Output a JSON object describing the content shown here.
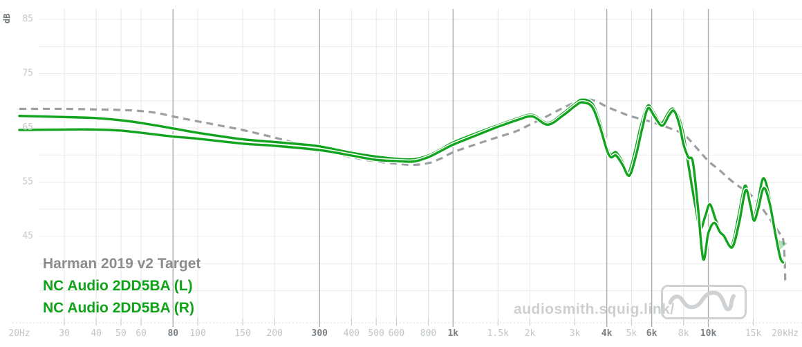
{
  "watermark": {
    "text": "audiosmith.squig.link/"
  },
  "chart_data": {
    "type": "line",
    "title": "",
    "xlabel": "",
    "ylabel": "dB",
    "legend_position": "bottom-left",
    "grid": true,
    "x_axis": {
      "scale": "log",
      "min": 20,
      "max": 20000,
      "ticks": [
        {
          "value": 20,
          "label": "20Hz",
          "bold": false,
          "grid": false
        },
        {
          "value": 30,
          "label": "30",
          "bold": false,
          "grid": true
        },
        {
          "value": 40,
          "label": "40",
          "bold": false,
          "grid": true
        },
        {
          "value": 50,
          "label": "50",
          "bold": false,
          "grid": true
        },
        {
          "value": 60,
          "label": "60",
          "bold": false,
          "grid": true
        },
        {
          "value": 80,
          "label": "80",
          "bold": true,
          "grid": true
        },
        {
          "value": 100,
          "label": "100",
          "bold": false,
          "grid": true
        },
        {
          "value": 150,
          "label": "150",
          "bold": false,
          "grid": true
        },
        {
          "value": 200,
          "label": "200",
          "bold": false,
          "grid": true
        },
        {
          "value": 300,
          "label": "300",
          "bold": true,
          "grid": true
        },
        {
          "value": 400,
          "label": "400",
          "bold": false,
          "grid": true
        },
        {
          "value": 500,
          "label": "500",
          "bold": false,
          "grid": true
        },
        {
          "value": 600,
          "label": "600",
          "bold": false,
          "grid": true
        },
        {
          "value": 800,
          "label": "800",
          "bold": false,
          "grid": true
        },
        {
          "value": 1000,
          "label": "1k",
          "bold": true,
          "grid": true
        },
        {
          "value": 1500,
          "label": "1.5k",
          "bold": false,
          "grid": true
        },
        {
          "value": 2000,
          "label": "2k",
          "bold": false,
          "grid": true
        },
        {
          "value": 3000,
          "label": "3k",
          "bold": false,
          "grid": true
        },
        {
          "value": 4000,
          "label": "4k",
          "bold": true,
          "grid": true
        },
        {
          "value": 5000,
          "label": "5k",
          "bold": false,
          "grid": true
        },
        {
          "value": 6000,
          "label": "6k",
          "bold": true,
          "grid": true
        },
        {
          "value": 8000,
          "label": "8k",
          "bold": false,
          "grid": true
        },
        {
          "value": 10000,
          "label": "10k",
          "bold": true,
          "grid": true
        },
        {
          "value": 15000,
          "label": "15k",
          "bold": false,
          "grid": true
        },
        {
          "value": 20000,
          "label": "20kHz",
          "bold": false,
          "grid": false
        }
      ]
    },
    "y_axis": {
      "unit": "dB",
      "labeled_ticks": [
        85,
        75,
        65,
        55,
        45
      ],
      "gridlines": [
        85,
        80,
        75,
        70,
        65,
        60,
        55,
        50,
        45,
        40,
        35
      ],
      "min": 35,
      "max": 88
    },
    "series": [
      {
        "name": "Harman 2019 v2 Target",
        "color": "#9b9fa1",
        "legend_color": "#8c8c8c",
        "style": "dashed",
        "points": [
          [
            20,
            68.5
          ],
          [
            30,
            68.5
          ],
          [
            40,
            68.4
          ],
          [
            50,
            68.3
          ],
          [
            60,
            68.1
          ],
          [
            70,
            67.7
          ],
          [
            80,
            67.1
          ],
          [
            100,
            66.2
          ],
          [
            120,
            65.5
          ],
          [
            150,
            64.6
          ],
          [
            200,
            63.2
          ],
          [
            250,
            62.0
          ],
          [
            300,
            61.0
          ],
          [
            400,
            59.6
          ],
          [
            500,
            58.8
          ],
          [
            600,
            58.4
          ],
          [
            700,
            58.2
          ],
          [
            800,
            58.5
          ],
          [
            900,
            59.4
          ],
          [
            1000,
            60.5
          ],
          [
            1250,
            62.1
          ],
          [
            1500,
            63.3
          ],
          [
            1770,
            64.4
          ],
          [
            2000,
            65.6
          ],
          [
            2300,
            67.0
          ],
          [
            2600,
            68.3
          ],
          [
            3000,
            69.7
          ],
          [
            3300,
            70.2
          ],
          [
            3600,
            70.0
          ],
          [
            4000,
            68.9
          ],
          [
            4500,
            67.9
          ],
          [
            5000,
            67.1
          ],
          [
            6000,
            66.1
          ],
          [
            7000,
            65.0
          ],
          [
            8000,
            63.8
          ],
          [
            9000,
            61.3
          ],
          [
            10000,
            58.9
          ],
          [
            11000,
            57.3
          ],
          [
            12000,
            55.7
          ],
          [
            13000,
            54.4
          ],
          [
            14000,
            53.4
          ],
          [
            15000,
            52.2
          ],
          [
            16000,
            50.6
          ],
          [
            17000,
            48.9
          ],
          [
            18000,
            47.2
          ],
          [
            19000,
            45.6
          ],
          [
            19600,
            44.6
          ],
          [
            19900,
            41.0
          ],
          [
            20000,
            36.5
          ]
        ]
      },
      {
        "name": "NC Audio 2DD5BA (L)",
        "color": "#12a41f",
        "legend_color": "#0fa318",
        "style": "solid",
        "points": [
          [
            20,
            67.2
          ],
          [
            30,
            67.0
          ],
          [
            40,
            66.8
          ],
          [
            50,
            66.4
          ],
          [
            60,
            65.9
          ],
          [
            80,
            64.9
          ],
          [
            100,
            64.1
          ],
          [
            150,
            62.9
          ],
          [
            200,
            62.4
          ],
          [
            250,
            62.0
          ],
          [
            300,
            61.6
          ],
          [
            400,
            60.4
          ],
          [
            500,
            59.7
          ],
          [
            600,
            59.3
          ],
          [
            700,
            59.2
          ],
          [
            800,
            59.9
          ],
          [
            900,
            61.1
          ],
          [
            1000,
            62.3
          ],
          [
            1200,
            63.8
          ],
          [
            1500,
            65.5
          ],
          [
            1800,
            66.8
          ],
          [
            2050,
            67.4
          ],
          [
            2350,
            65.9
          ],
          [
            2700,
            67.7
          ],
          [
            3000,
            69.4
          ],
          [
            3200,
            70.2
          ],
          [
            3500,
            69.5
          ],
          [
            3750,
            66.2
          ],
          [
            4000,
            61.6
          ],
          [
            4150,
            60.1
          ],
          [
            4350,
            60.5
          ],
          [
            4600,
            58.8
          ],
          [
            4850,
            56.6
          ],
          [
            5150,
            60.5
          ],
          [
            5450,
            65.5
          ],
          [
            5800,
            69.1
          ],
          [
            6150,
            67.6
          ],
          [
            6550,
            65.9
          ],
          [
            7000,
            67.9
          ],
          [
            7300,
            68.5
          ],
          [
            7700,
            66.6
          ],
          [
            8000,
            63.6
          ],
          [
            8400,
            57.5
          ],
          [
            8900,
            50.5
          ],
          [
            9300,
            46.4
          ],
          [
            9750,
            48.9
          ],
          [
            10150,
            50.9
          ],
          [
            10700,
            48.0
          ],
          [
            11300,
            45.4
          ],
          [
            12300,
            43.3
          ],
          [
            13100,
            48.5
          ],
          [
            13900,
            54.3
          ],
          [
            14500,
            51.5
          ],
          [
            15000,
            48.4
          ],
          [
            15600,
            51.0
          ],
          [
            16400,
            55.7
          ],
          [
            17300,
            52.5
          ],
          [
            18200,
            46.5
          ],
          [
            19000,
            42.0
          ],
          [
            19600,
            40.5
          ]
        ]
      },
      {
        "name": "NC Audio 2DD5BA (R)",
        "color": "#12a41f",
        "legend_color": "#0fa318",
        "style": "solid",
        "points": [
          [
            20,
            64.6
          ],
          [
            30,
            64.7
          ],
          [
            40,
            64.7
          ],
          [
            50,
            64.5
          ],
          [
            60,
            64.1
          ],
          [
            80,
            63.4
          ],
          [
            100,
            63.0
          ],
          [
            150,
            62.1
          ],
          [
            200,
            61.7
          ],
          [
            300,
            60.9
          ],
          [
            400,
            59.9
          ],
          [
            500,
            59.1
          ],
          [
            600,
            58.9
          ],
          [
            700,
            58.8
          ],
          [
            800,
            59.6
          ],
          [
            900,
            60.8
          ],
          [
            1000,
            61.9
          ],
          [
            1200,
            63.4
          ],
          [
            1500,
            65.2
          ],
          [
            1800,
            66.5
          ],
          [
            2050,
            67.1
          ],
          [
            2350,
            65.6
          ],
          [
            2700,
            67.3
          ],
          [
            3000,
            69.0
          ],
          [
            3200,
            69.7
          ],
          [
            3500,
            68.9
          ],
          [
            3750,
            65.4
          ],
          [
            4000,
            61.0
          ],
          [
            4150,
            59.6
          ],
          [
            4350,
            59.9
          ],
          [
            4600,
            58.3
          ],
          [
            4900,
            56.2
          ],
          [
            5200,
            59.8
          ],
          [
            5500,
            64.8
          ],
          [
            5800,
            68.6
          ],
          [
            6150,
            67.1
          ],
          [
            6600,
            65.4
          ],
          [
            7050,
            67.5
          ],
          [
            7350,
            68.1
          ],
          [
            7700,
            65.6
          ],
          [
            8000,
            61.9
          ],
          [
            8350,
            59.6
          ],
          [
            8700,
            58.7
          ],
          [
            9100,
            50.5
          ],
          [
            9550,
            40.8
          ],
          [
            10000,
            45.6
          ],
          [
            10550,
            47.5
          ],
          [
            11100,
            45.8
          ],
          [
            11500,
            45.1
          ],
          [
            12400,
            43.0
          ],
          [
            13200,
            47.5
          ],
          [
            14000,
            53.5
          ],
          [
            14600,
            50.8
          ],
          [
            15100,
            47.9
          ],
          [
            15700,
            50.2
          ],
          [
            16500,
            53.9
          ],
          [
            17400,
            51.0
          ],
          [
            18300,
            45.5
          ],
          [
            19100,
            41.2
          ],
          [
            19600,
            40.2
          ]
        ]
      }
    ]
  }
}
